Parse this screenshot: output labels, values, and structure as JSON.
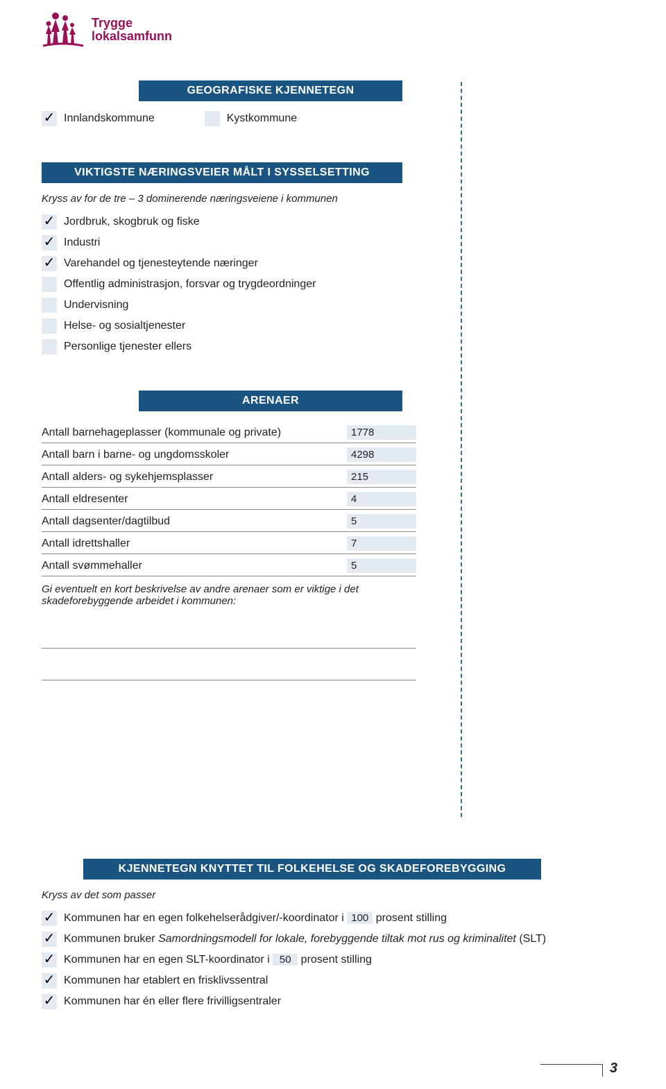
{
  "logo": {
    "line1": "Trygge",
    "line2": "lokalsamfunn",
    "color": "#9a1158"
  },
  "colors": {
    "banner_bg": "#1a5582",
    "banner_text": "#ffffff",
    "field_bg": "#e3eaf1",
    "dash_border": "#2f6f96"
  },
  "sections": {
    "geo": {
      "title": "GEOGRAFISKE KJENNETEGN",
      "options": [
        {
          "label": "Innlandskommune",
          "checked": true
        },
        {
          "label": "Kystkommune",
          "checked": false
        }
      ]
    },
    "naering": {
      "title": "VIKTIGSTE NÆRINGSVEIER MÅLT I SYSSELSETTING",
      "subtitle": "Kryss av for de tre – 3 dominerende næringsveiene i kommunen",
      "options": [
        {
          "label": "Jordbruk, skogbruk og fiske",
          "checked": true
        },
        {
          "label": "Industri",
          "checked": true
        },
        {
          "label": "Varehandel og tjenesteytende næringer",
          "checked": true
        },
        {
          "label": "Offentlig administrasjon, forsvar og trygdeordninger",
          "checked": false
        },
        {
          "label": "Undervisning",
          "checked": false
        },
        {
          "label": "Helse- og sosialtjenester",
          "checked": false
        },
        {
          "label": "Personlige tjenester ellers",
          "checked": false
        }
      ]
    },
    "arenaer": {
      "title": "ARENAER",
      "rows": [
        {
          "label": "Antall barnehageplasser (kommunale og private)",
          "value": "1778"
        },
        {
          "label": "Antall barn i barne- og ungdomsskoler",
          "value": "4298"
        },
        {
          "label": "Antall alders- og sykehjemsplasser",
          "value": "215"
        },
        {
          "label": "Antall eldresenter",
          "value": "4"
        },
        {
          "label": "Antall dagsenter/dagtilbud",
          "value": "5"
        },
        {
          "label": "Antall idrettshaller",
          "value": "7"
        },
        {
          "label": "Antall svømmehaller",
          "value": "5"
        }
      ],
      "note": "Gi eventuelt en kort beskrivelse av andre arenaer som er viktige i det skadeforebyggende arbeidet i kommunen:"
    },
    "folkehelse": {
      "title": "KJENNETEGN KNYTTET TIL FOLKEHELSE OG SKADEFOREBYGGING",
      "subtitle": "Kryss av det som passer",
      "items": [
        {
          "checked": true,
          "pre": "Kommunen har en egen folkehelserådgiver/-koordinator i ",
          "val": "100",
          "post": " prosent stilling"
        },
        {
          "checked": true,
          "pre": "Kommunen bruker ",
          "italic": "Samordningsmodell for lokale, forebyggende tiltak mot rus og kriminalitet",
          "post": " (SLT)"
        },
        {
          "checked": true,
          "pre": "Kommunen har en egen SLT-koordinator i ",
          "val": "50",
          "post": " prosent stilling"
        },
        {
          "checked": true,
          "pre": "Kommunen har etablert en frisklivssentral"
        },
        {
          "checked": true,
          "pre": "Kommunen har én eller flere frivilligsentraler"
        }
      ]
    }
  },
  "page_number": "3"
}
